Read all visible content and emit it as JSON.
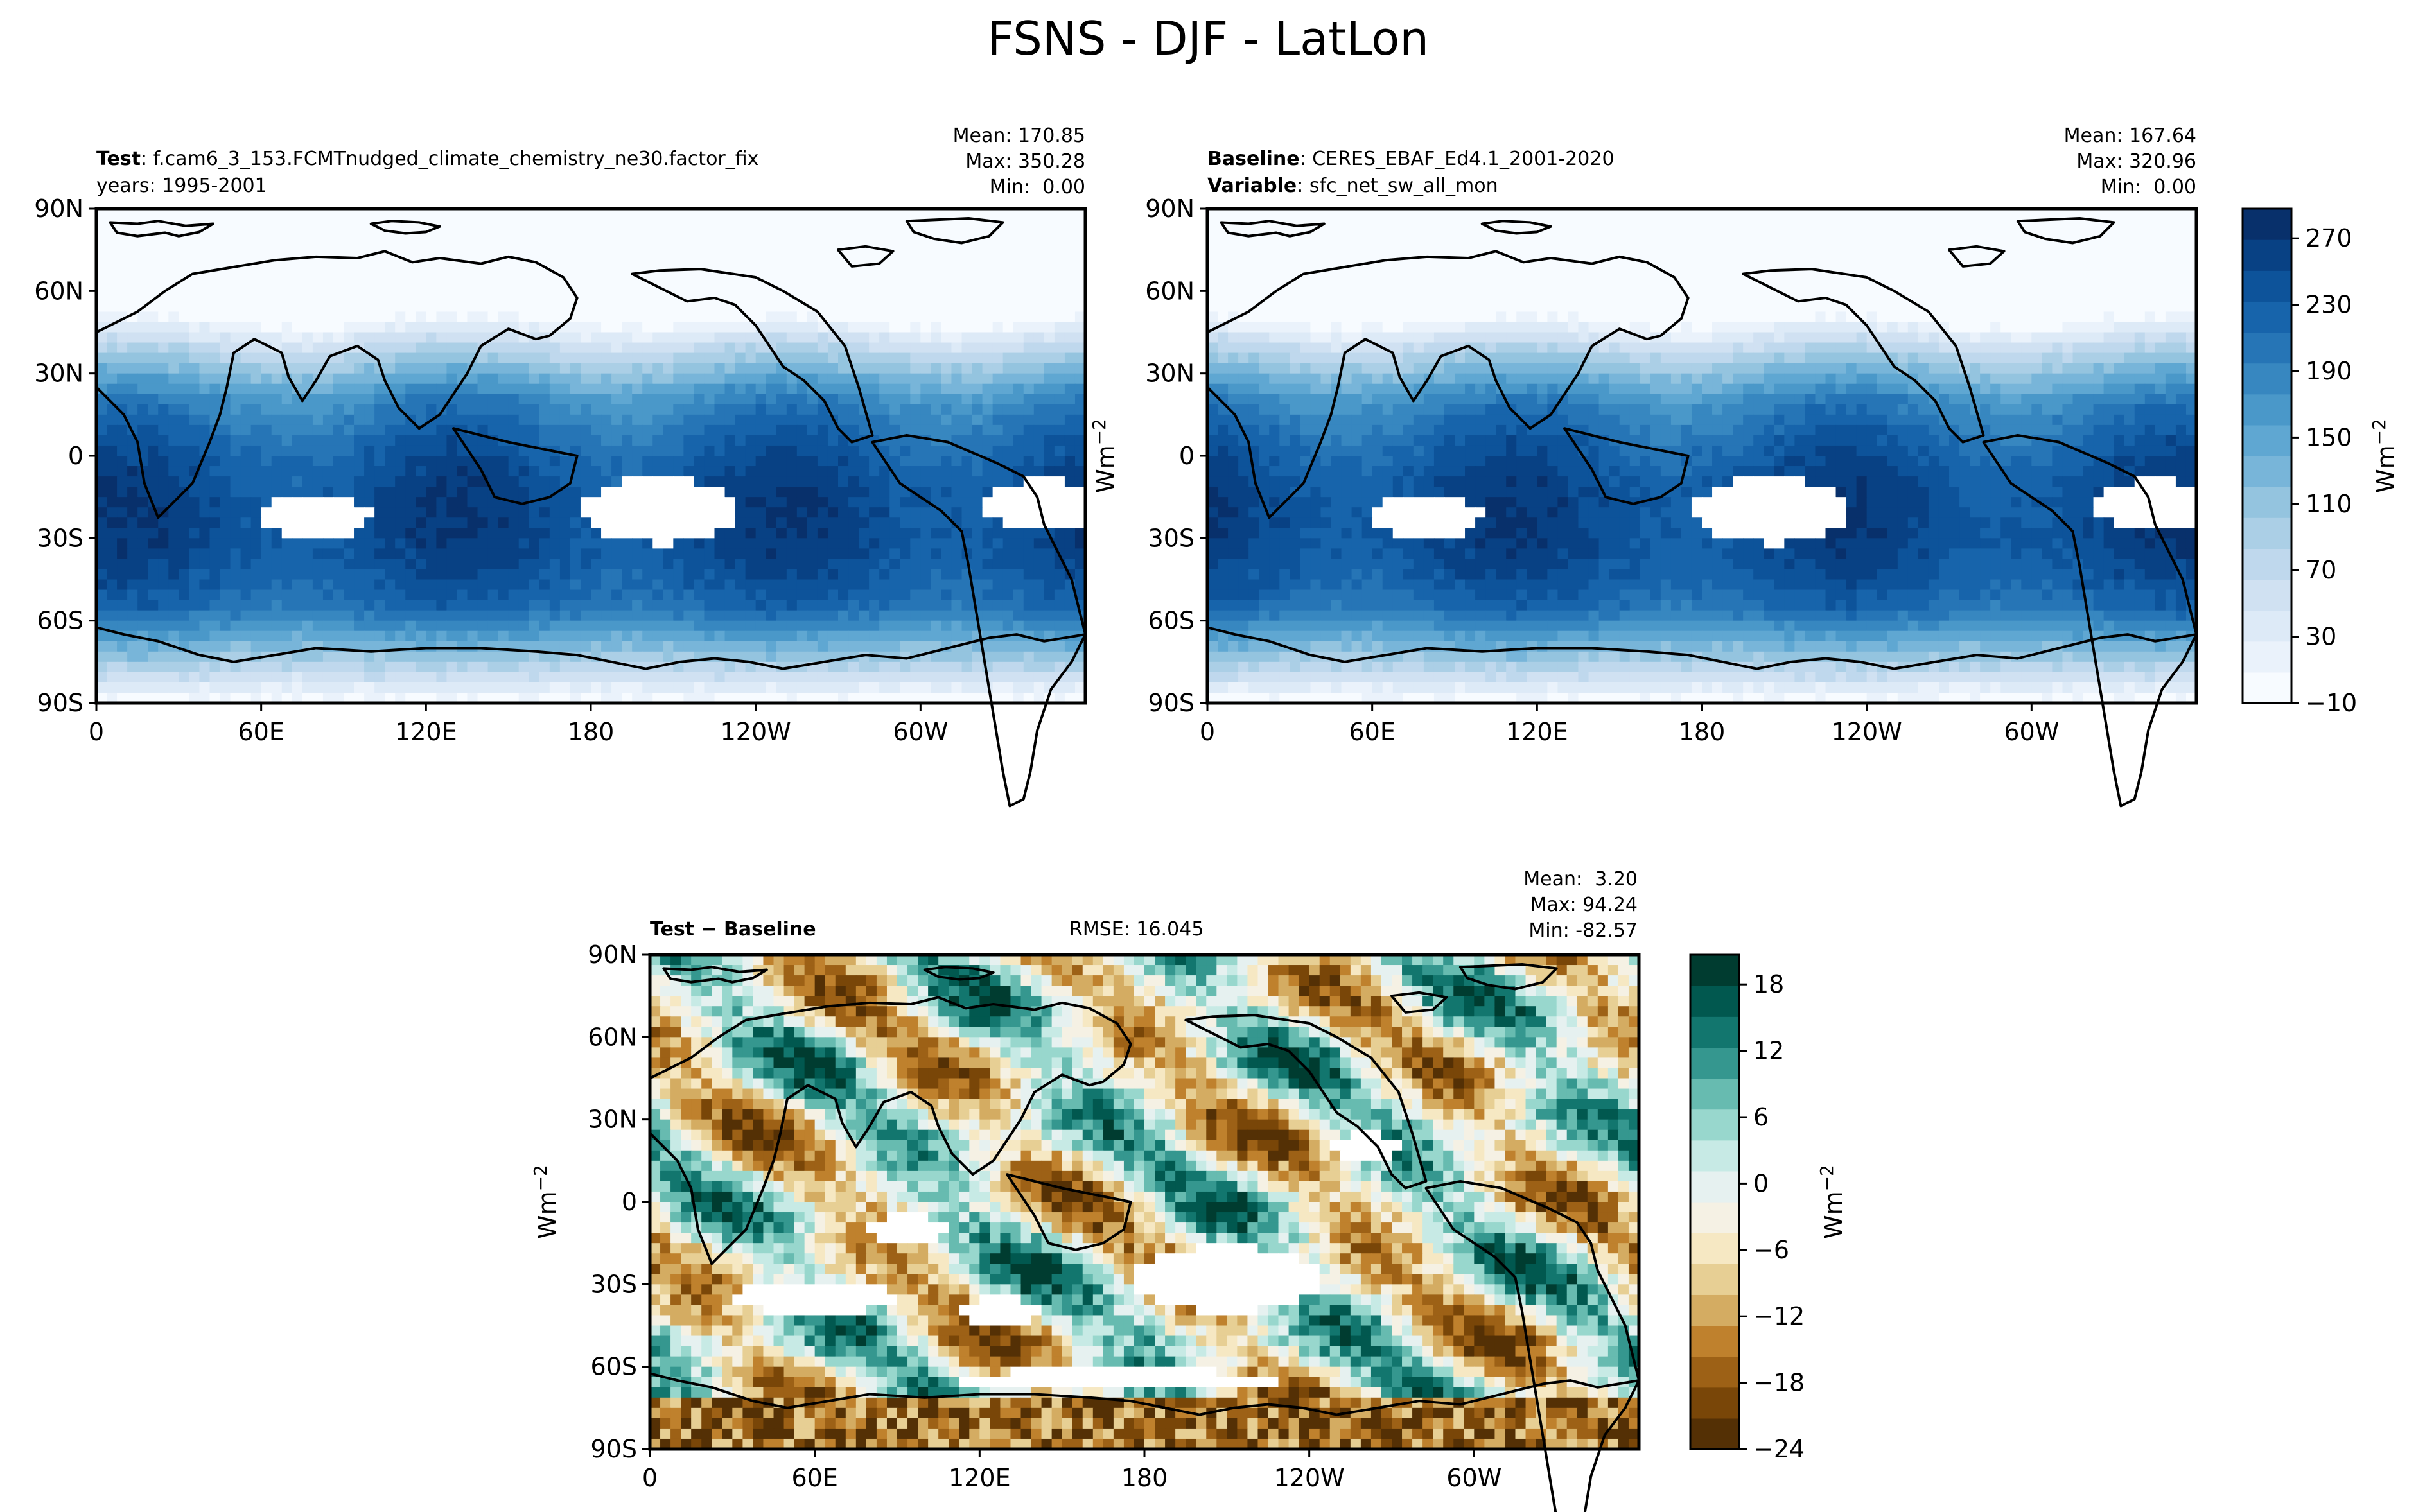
{
  "title": "FSNS - DJF - LatLon",
  "colors": {
    "blues": [
      "#f7fbff",
      "#e3eef9",
      "#d0e1f2",
      "#b7d4ea",
      "#94c4df",
      "#6aaed6",
      "#4a98c9",
      "#2e7ebc",
      "#1764ab",
      "#084a91",
      "#08306b"
    ],
    "diff": [
      "#543005",
      "#8c510a",
      "#bf812d",
      "#dfc27d",
      "#f6e8c3",
      "#f5f5f5",
      "#c7eae5",
      "#80cdc1",
      "#35978f",
      "#01665e",
      "#003c30"
    ]
  },
  "chart_data": [
    {
      "type": "heatmap",
      "panel": "test",
      "label_bold": "Test",
      "label_text": ": f.cam6_3_153.FCMTnudged_climate_chemistry_ne30.factor_fix",
      "label_line2": "years: 1995-2001",
      "stats": [
        "Mean: 170.85",
        "Max: 350.28",
        "Min:  0.00"
      ],
      "x_ticks": [
        "0",
        "60E",
        "120E",
        "180",
        "120W",
        "60W"
      ],
      "y_ticks": [
        "90N",
        "60N",
        "30N",
        "0",
        "30S",
        "60S",
        "90S"
      ],
      "xlim": [
        0,
        360
      ],
      "ylim": [
        -90,
        90
      ]
    },
    {
      "type": "heatmap",
      "panel": "baseline",
      "label_bold": "Baseline",
      "label_text": ": CERES_EBAF_Ed4.1_2001-2020",
      "label_bold2": "Variable",
      "label_text2": ": sfc_net_sw_all_mon",
      "stats": [
        "Mean: 167.64",
        "Max: 320.96",
        "Min:  0.00"
      ],
      "x_ticks": [
        "0",
        "60E",
        "120E",
        "180",
        "120W",
        "60W"
      ],
      "y_ticks": [
        "90N",
        "60N",
        "30N",
        "0",
        "30S",
        "60S",
        "90S"
      ],
      "xlim": [
        0,
        360
      ],
      "ylim": [
        -90,
        90
      ],
      "colorbar_ticks": [
        "270",
        "230",
        "190",
        "150",
        "110",
        "70",
        "30",
        "−10"
      ],
      "colorbar_unit": "Wm",
      "colorbar_unit_sup": "−2"
    },
    {
      "type": "heatmap",
      "panel": "difference",
      "label_bold": "Test − Baseline",
      "rmse": "RMSE: 16.045",
      "stats": [
        "Mean:  3.20",
        "Max: 94.24",
        "Min: -82.57"
      ],
      "x_ticks": [
        "0",
        "60E",
        "120E",
        "180",
        "120W",
        "60W"
      ],
      "y_ticks": [
        "90N",
        "60N",
        "30N",
        "0",
        "30S",
        "60S",
        "90S"
      ],
      "xlim": [
        0,
        360
      ],
      "ylim": [
        -90,
        90
      ],
      "colorbar_ticks": [
        "18",
        "12",
        "6",
        "0",
        "−6",
        "−12",
        "−18",
        "−24"
      ],
      "colorbar_unit": "Wm",
      "colorbar_unit_sup": "−2",
      "y_unit": "Wm",
      "y_unit_sup": "−2"
    }
  ],
  "left_unit": "Wm",
  "left_unit_sup": "−2"
}
